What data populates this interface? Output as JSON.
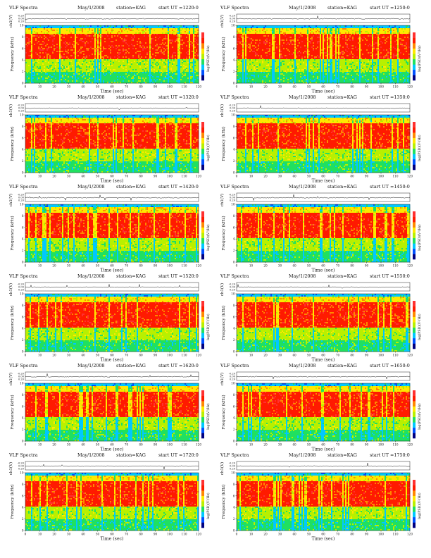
{
  "colors": {
    "background": "#ffffff",
    "colormap": [
      "#000080",
      "#0050ff",
      "#00c8ff",
      "#20e060",
      "#b8f000",
      "#ffe800",
      "#ff8800",
      "#ff1a00",
      "#ff3030"
    ],
    "trace": "#000000"
  },
  "colorbar_label": "log(PSD)(V²/Hz)",
  "panels": [
    {
      "title": "VLF Spectra",
      "date": "May/1/2008",
      "station": "station=KAG",
      "start": "start  UT =1220:0",
      "ch_label": "ch1(V)",
      "ylabel": "Frequency  (kHz)",
      "xlabel": "Time  (sec)",
      "colorbar_label": "log(PSD)(V²/Hz)"
    },
    {
      "title": "VLF Spectra",
      "date": "May/1/2008",
      "station": "station=KAG",
      "start": "start  UT =1250:0",
      "ch_label": "ch1(V)",
      "ylabel": "Frequency  (kHz)",
      "xlabel": "Time  (sec)",
      "colorbar_label": "log(PSD)(V²/Hz)"
    },
    {
      "title": "VLF Spectra",
      "date": "May/1/2008",
      "station": "station=KAG",
      "start": "start  UT =1320:0",
      "ch_label": "ch1(V)",
      "ylabel": "Frequency  (kHz)",
      "xlabel": "Time  (sec)",
      "colorbar_label": "log(PSD)(V²/Hz)"
    },
    {
      "title": "VLF Spectra",
      "date": "May/1/2008",
      "station": "station=KAG",
      "start": "start  UT =1350:0",
      "ch_label": "ch1(V)",
      "ylabel": "Frequency  (kHz)",
      "xlabel": "Time  (sec)",
      "colorbar_label": "log(PSD)(V²/Hz)"
    },
    {
      "title": "VLF Spectra",
      "date": "May/1/2008",
      "station": "station=KAG",
      "start": "start  UT =1420:0",
      "ch_label": "ch1(V)",
      "ylabel": "Frequency  (kHz)",
      "xlabel": "Time  (sec)",
      "colorbar_label": "log(PSD)(V²/Hz)"
    },
    {
      "title": "VLF Spectra",
      "date": "May/1/2008",
      "station": "station=KAG",
      "start": "start  UT =1450:0",
      "ch_label": "ch1(V)",
      "ylabel": "Frequency  (kHz)",
      "xlabel": "Time  (sec)",
      "colorbar_label": "log(PSD)(V²/Hz)"
    },
    {
      "title": "VLF Spectra",
      "date": "May/1/2008",
      "station": "station=KAG",
      "start": "start  UT =1520:0",
      "ch_label": "ch1(V)",
      "ylabel": "Frequency  (kHz)",
      "xlabel": "Time  (sec)",
      "colorbar_label": "log(PSD)(V²/Hz)"
    },
    {
      "title": "VLF Spectra",
      "date": "May/1/2008",
      "station": "station=KAG",
      "start": "start  UT =1550:0",
      "ch_label": "ch1(V)",
      "ylabel": "Frequency  (kHz)",
      "xlabel": "Time  (sec)",
      "colorbar_label": "log(PSD)(V²/Hz)"
    },
    {
      "title": "VLF Spectra",
      "date": "May/1/2008",
      "station": "station=KAG",
      "start": "start  UT =1620:0",
      "ch_label": "ch1(V)",
      "ylabel": "Frequency  (kHz)",
      "xlabel": "Time  (sec)",
      "colorbar_label": "log(PSD)(V²/Hz)"
    },
    {
      "title": "VLF Spectra",
      "date": "May/1/2008",
      "station": "station=KAG",
      "start": "start  UT =1650:0",
      "ch_label": "ch1(V)",
      "ylabel": "Frequency  (kHz)",
      "xlabel": "Time  (sec)",
      "colorbar_label": "log(PSD)(V²/Hz)"
    },
    {
      "title": "VLF Spectra",
      "date": "May/1/2008",
      "station": "station=KAG",
      "start": "start  UT =1720:0",
      "ch_label": "ch1(V)",
      "ylabel": "Frequency  (kHz)",
      "xlabel": "Time  (sec)",
      "colorbar_label": "log(PSD)(V²/Hz)"
    },
    {
      "title": "VLF Spectra",
      "date": "May/1/2008",
      "station": "station=KAG",
      "start": "start  UT =1750:0",
      "ch_label": "ch1(V)",
      "ylabel": "Frequency  (kHz)",
      "xlabel": "Time  (sec)",
      "colorbar_label": "log(PSD)(V²/Hz)"
    }
  ],
  "chart_data": {
    "type": "heatmap",
    "xlim": [
      0,
      120
    ],
    "x_ticks": [
      "0",
      "10",
      "20",
      "30",
      "40",
      "50",
      "60",
      "70",
      "80",
      "90",
      "100",
      "110",
      "120"
    ],
    "ylim": [
      0,
      10
    ],
    "y_ticks": [
      "0",
      "2",
      "4",
      "6",
      "8",
      "10"
    ],
    "ch_ticks": [
      "-0.20",
      "0.00",
      "0.20"
    ],
    "xlabel": "Time  (sec)",
    "ylabel": "Frequency  (kHz)",
    "colorbar_label": "log(PSD)(V²/Hz)",
    "band_profile": [
      {
        "freq_khz": [
          0,
          2
        ],
        "dominant_color": "green"
      },
      {
        "freq_khz": [
          2,
          4
        ],
        "dominant_color": "green-yellow"
      },
      {
        "freq_khz": [
          4,
          8.5
        ],
        "dominant_color": "red"
      },
      {
        "freq_khz": [
          8.5,
          9.5
        ],
        "dominant_color": "yellow"
      },
      {
        "freq_khz": [
          9.5,
          10
        ],
        "dominant_color": "cyan"
      }
    ],
    "grid": false
  }
}
